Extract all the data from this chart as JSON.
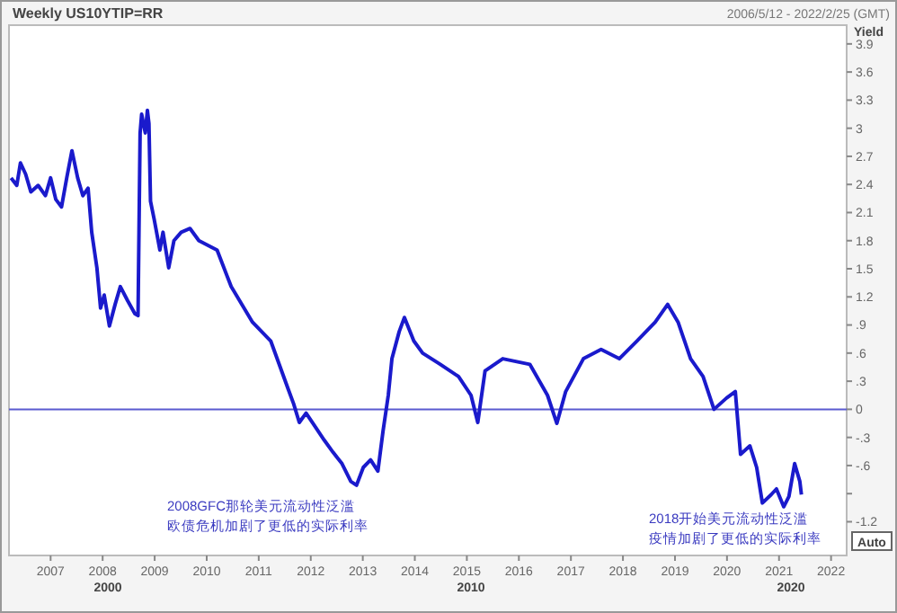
{
  "chart_data": {
    "type": "line",
    "title": "Weekly US10YTIP=RR",
    "subtitle": "2006/5/12 - 2022/2/25 (GMT)",
    "ylabel": "Yield",
    "x": [
      2006.24,
      2006.35,
      2006.42,
      2006.52,
      2006.62,
      2006.76,
      2006.9,
      2007.0,
      2007.1,
      2007.21,
      2007.31,
      2007.41,
      2007.52,
      2007.62,
      2007.72,
      2007.79,
      2007.89,
      2007.96,
      2008.03,
      2008.13,
      2008.24,
      2008.34,
      2008.48,
      2008.62,
      2008.68,
      2008.72,
      2008.75,
      2008.82,
      2008.86,
      2008.89,
      2008.92,
      2008.99,
      2009.1,
      2009.16,
      2009.27,
      2009.37,
      2009.51,
      2009.68,
      2009.85,
      2010.2,
      2010.47,
      2010.88,
      2011.23,
      2011.57,
      2011.67,
      2011.78,
      2011.91,
      2012.09,
      2012.26,
      2012.43,
      2012.6,
      2012.77,
      2012.88,
      2013.01,
      2013.15,
      2013.29,
      2013.39,
      2013.49,
      2013.56,
      2013.7,
      2013.8,
      2013.98,
      2014.15,
      2014.49,
      2014.84,
      2015.08,
      2015.21,
      2015.35,
      2015.69,
      2016.21,
      2016.55,
      2016.73,
      2016.9,
      2017.24,
      2017.58,
      2017.93,
      2018.27,
      2018.62,
      2018.86,
      2019.06,
      2019.3,
      2019.54,
      2019.75,
      2019.99,
      2020.16,
      2020.26,
      2020.44,
      2020.57,
      2020.68,
      2020.85,
      2020.95,
      2021.09,
      2021.19,
      2021.3,
      2021.4,
      2021.43
    ],
    "series": [
      {
        "color": "#1a1acc",
        "values": [
          2.47,
          2.39,
          2.63,
          2.51,
          2.32,
          2.39,
          2.28,
          2.47,
          2.24,
          2.16,
          2.47,
          2.76,
          2.47,
          2.28,
          2.36,
          1.89,
          1.51,
          1.08,
          1.22,
          0.89,
          1.12,
          1.31,
          1.16,
          1.02,
          1.0,
          2.95,
          3.15,
          2.95,
          3.19,
          3.05,
          2.22,
          2.03,
          1.7,
          1.89,
          1.51,
          1.8,
          1.89,
          1.93,
          1.8,
          1.7,
          1.31,
          0.93,
          0.73,
          0.21,
          0.06,
          -0.14,
          -0.04,
          -0.19,
          -0.33,
          -0.46,
          -0.58,
          -0.77,
          -0.81,
          -0.62,
          -0.54,
          -0.66,
          -0.23,
          0.15,
          0.54,
          0.83,
          0.98,
          0.73,
          0.6,
          0.48,
          0.35,
          0.15,
          -0.14,
          0.41,
          0.54,
          0.48,
          0.15,
          -0.15,
          0.19,
          0.54,
          0.64,
          0.54,
          0.73,
          0.93,
          1.12,
          0.93,
          0.54,
          0.35,
          0.0,
          0.12,
          0.19,
          -0.48,
          -0.39,
          -0.62,
          -1.0,
          -0.91,
          -0.85,
          -1.04,
          -0.93,
          -0.58,
          -0.77,
          -0.91
        ]
      }
    ],
    "xlim": [
      2006.2,
      2022.3
    ],
    "xticks": [
      2007,
      2008,
      2009,
      2010,
      2011,
      2012,
      2013,
      2014,
      2015,
      2016,
      2017,
      2018,
      2019,
      2020,
      2021,
      2022
    ],
    "ylim": [
      -1.56,
      4.1
    ],
    "yticks": [
      3.9,
      3.6,
      3.3,
      3,
      2.7,
      2.4,
      {
        "value": 2.1,
        "label": "2.1"
      },
      1.8,
      1.5,
      1.2,
      {
        "value": 0.9,
        "label": ".9"
      },
      {
        "value": 0.6,
        "label": ".6"
      },
      {
        "value": 0.3,
        "label": ".3"
      },
      0,
      {
        "value": -0.3,
        "label": "-.3"
      },
      {
        "value": -0.6,
        "label": "-.6"
      },
      {
        "value": -0.9,
        "label": null
      },
      -1.2
    ],
    "ref_lines": [
      {
        "axis": "y",
        "value": 0,
        "color": "#5a5ad0"
      }
    ],
    "annotations": [
      "2008GFC那轮美元流动性泛滥欧债危机加剧了更低的实际利率",
      "2018开始美元流动性泛滥疫情加剧了更低的实际利率",
      "2000",
      "2010",
      "2020",
      "Auto"
    ],
    "grid": false,
    "marker": "none",
    "line_style": "solid"
  }
}
